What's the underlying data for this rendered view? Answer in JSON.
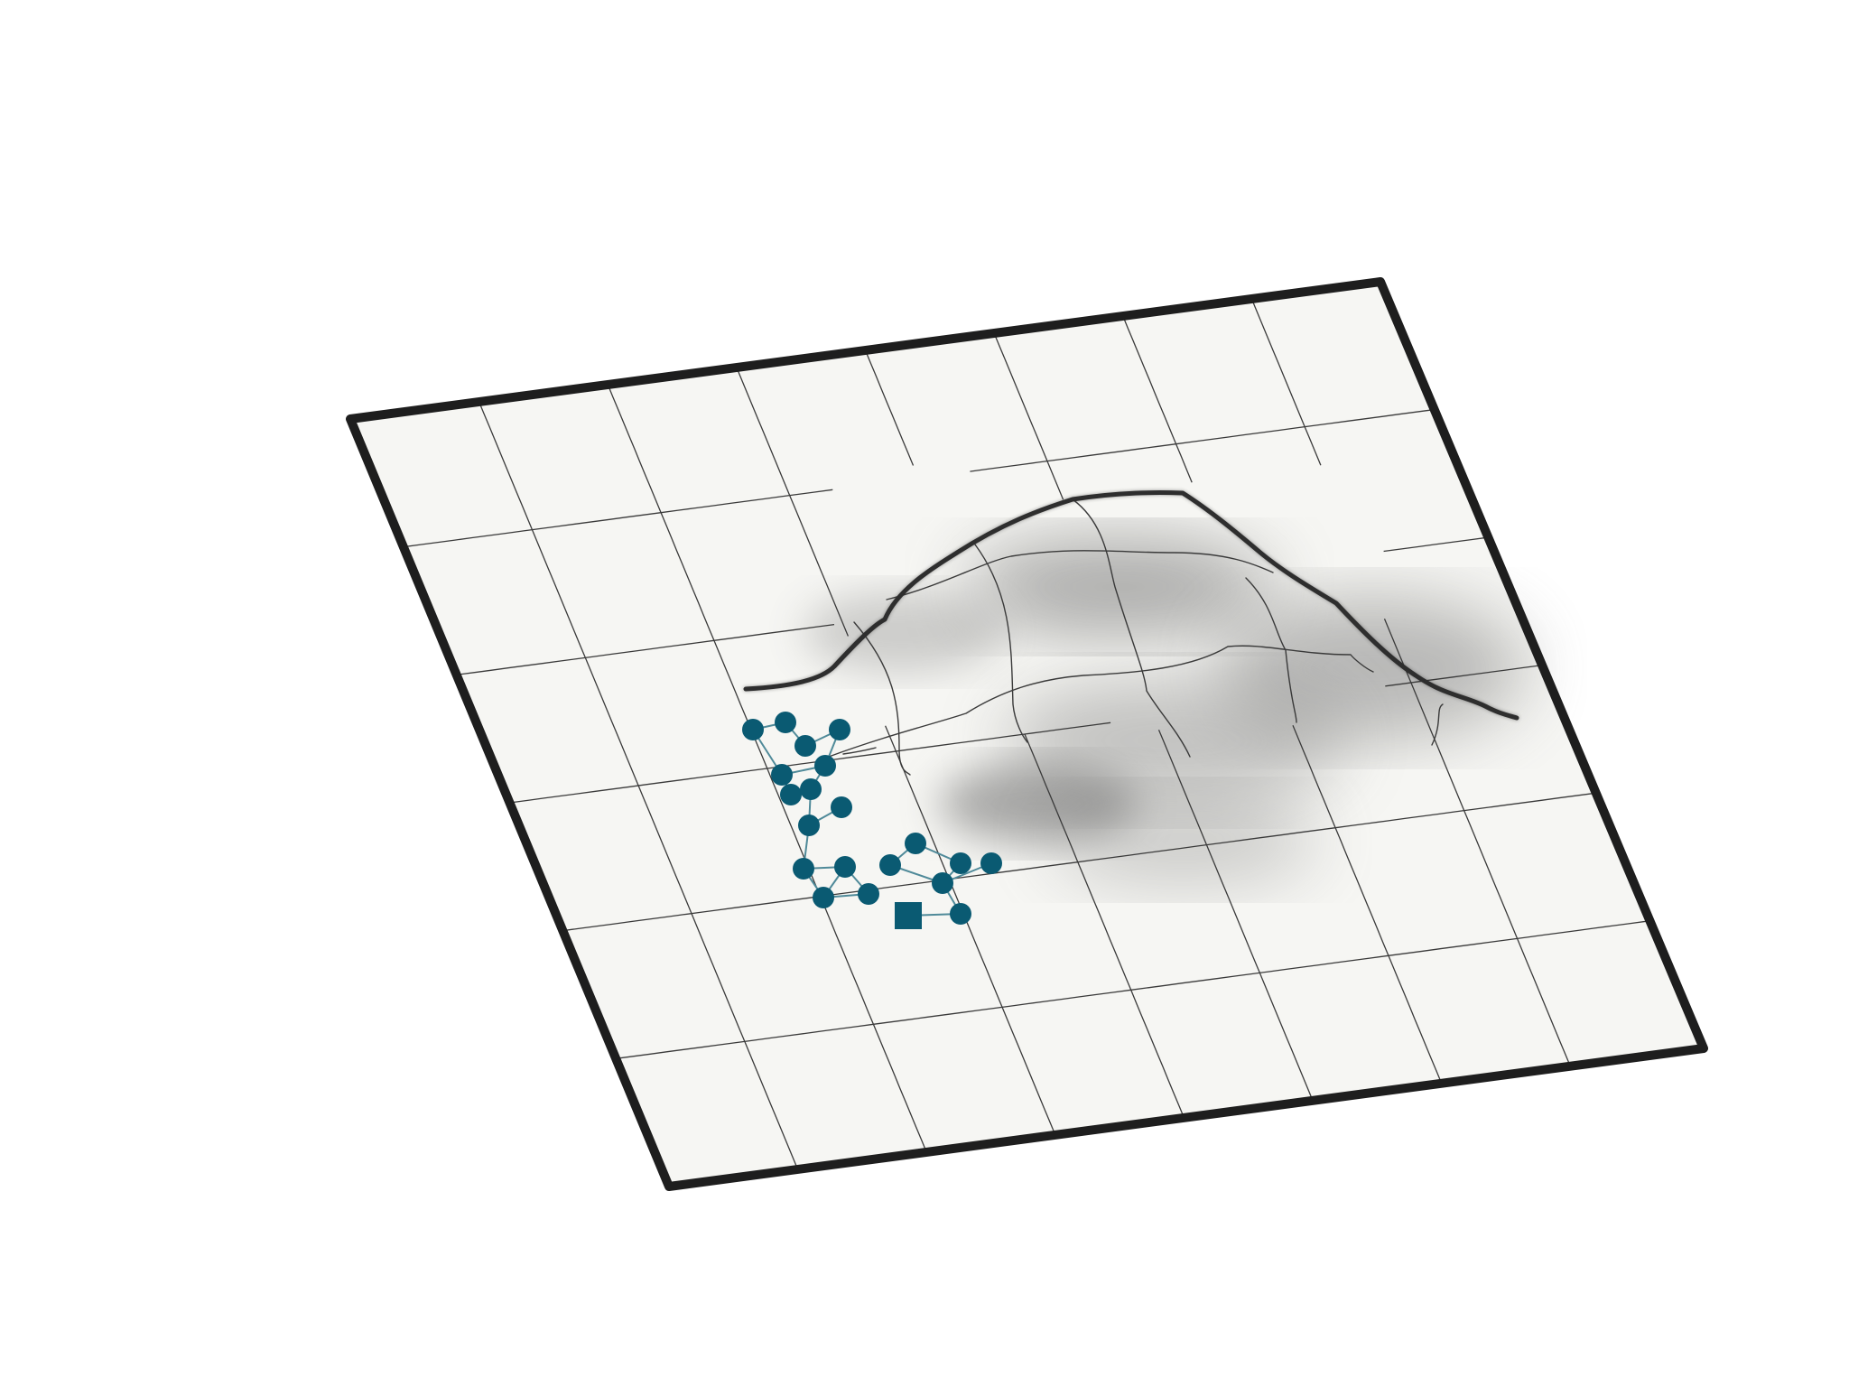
{
  "scene": {
    "board_fill": "#f6f6f3",
    "frame_color": "#1e1e1e",
    "grid_color": "#3a3a3a",
    "terrain_color": "#2f2f2f",
    "shadow_color": "#6e6e6e",
    "node_color": "#0a5a72",
    "edge_color": "#4f8a99",
    "grid_columns": 8,
    "grid_rows": 6,
    "graph": {
      "node_count": 23,
      "edge_count": 24,
      "root_shape": "square",
      "node_shape": "circle"
    }
  }
}
